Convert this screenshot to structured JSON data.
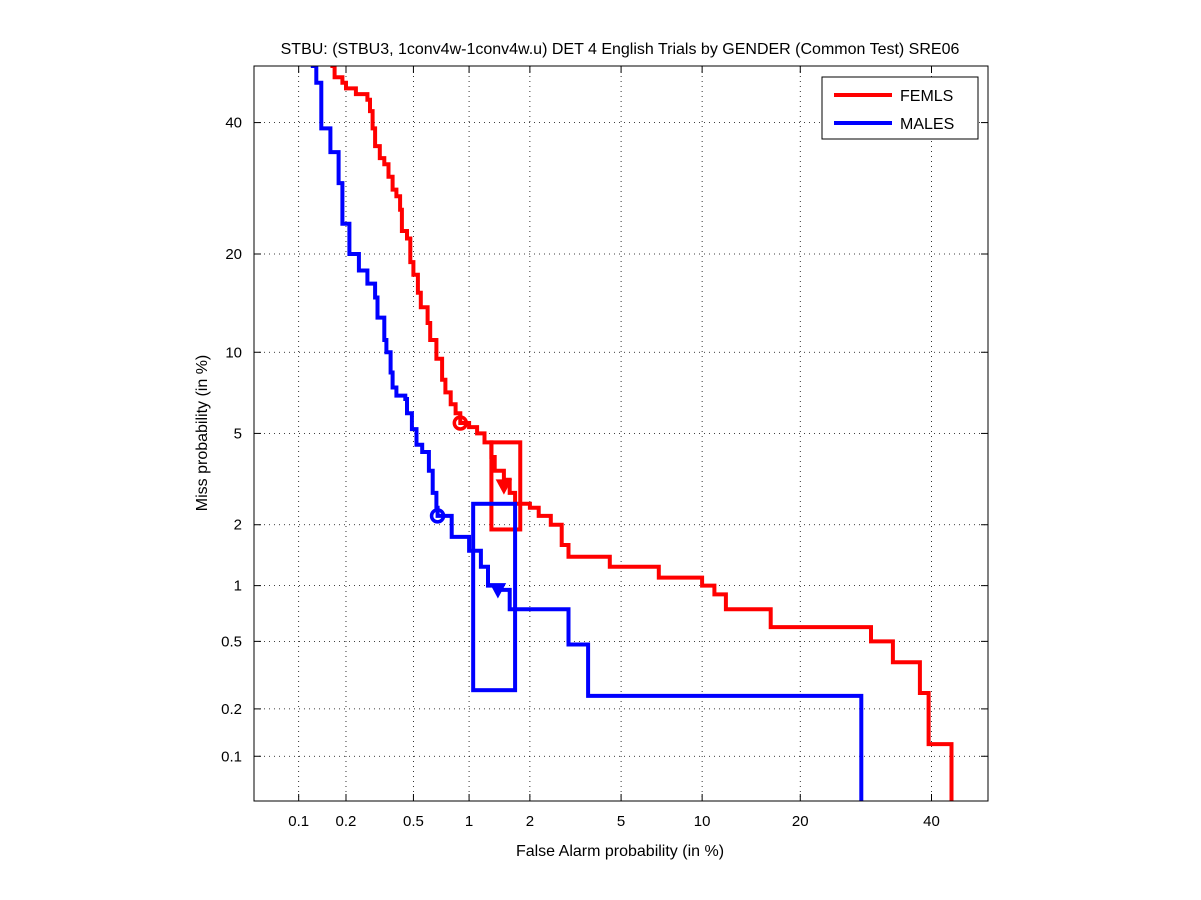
{
  "chart_data": {
    "type": "line",
    "scale": "probit",
    "title": "STBU: (STBU3, 1conv4w-1conv4w.u) DET 4 English Trials by GENDER (Common Test) SRE06",
    "xlabel": "False Alarm probability (in %)",
    "ylabel": "Miss probability (in %)",
    "xlim": [
      0.05,
      50
    ],
    "ylim": [
      0.05,
      50
    ],
    "xticks": [
      0.1,
      0.2,
      0.5,
      1,
      2,
      5,
      10,
      20,
      40
    ],
    "xtick_labels": [
      "0.1",
      "0.2",
      "0.5",
      "1",
      "2",
      "5",
      "10",
      "20",
      "40"
    ],
    "yticks": [
      0.1,
      0.2,
      0.5,
      1,
      2,
      5,
      10,
      20,
      40
    ],
    "ytick_labels": [
      "0.1",
      "0.2",
      "0.5",
      "1",
      "2",
      "5",
      "10",
      "20",
      "40"
    ],
    "grid": true,
    "legend_position": "top-right",
    "series": [
      {
        "name": "FEMLS",
        "color": "#ff0000",
        "points": [
          [
            0.16,
            50
          ],
          [
            0.17,
            48
          ],
          [
            0.19,
            47
          ],
          [
            0.2,
            46
          ],
          [
            0.23,
            45
          ],
          [
            0.27,
            44
          ],
          [
            0.28,
            42
          ],
          [
            0.29,
            39
          ],
          [
            0.3,
            36
          ],
          [
            0.32,
            34
          ],
          [
            0.34,
            33
          ],
          [
            0.36,
            31
          ],
          [
            0.38,
            29
          ],
          [
            0.4,
            28
          ],
          [
            0.42,
            26
          ],
          [
            0.43,
            23
          ],
          [
            0.46,
            22
          ],
          [
            0.48,
            19
          ],
          [
            0.5,
            17.5
          ],
          [
            0.53,
            15.5
          ],
          [
            0.55,
            14
          ],
          [
            0.6,
            12.5
          ],
          [
            0.62,
            11
          ],
          [
            0.67,
            9.5
          ],
          [
            0.72,
            8
          ],
          [
            0.75,
            7.2
          ],
          [
            0.8,
            6.5
          ],
          [
            0.85,
            6
          ],
          [
            0.9,
            5.5
          ],
          [
            1.0,
            5.3
          ],
          [
            1.1,
            5.0
          ],
          [
            1.2,
            4.6
          ],
          [
            1.3,
            4.0
          ],
          [
            1.35,
            3.5
          ],
          [
            1.5,
            3.2
          ],
          [
            1.6,
            2.8
          ],
          [
            1.7,
            2.5
          ],
          [
            2.0,
            2.4
          ],
          [
            2.2,
            2.2
          ],
          [
            2.5,
            2.0
          ],
          [
            2.8,
            1.6
          ],
          [
            3.0,
            1.4
          ],
          [
            4.0,
            1.4
          ],
          [
            4.5,
            1.25
          ],
          [
            6.0,
            1.25
          ],
          [
            7.0,
            1.1
          ],
          [
            9.0,
            1.1
          ],
          [
            10.0,
            1.0
          ],
          [
            11.0,
            0.9
          ],
          [
            12.0,
            0.75
          ],
          [
            16.0,
            0.75
          ],
          [
            16.5,
            0.6
          ],
          [
            29.0,
            0.6
          ],
          [
            30.0,
            0.5
          ],
          [
            33.0,
            0.5
          ],
          [
            33.5,
            0.38
          ],
          [
            37.5,
            0.38
          ],
          [
            38.0,
            0.25
          ],
          [
            39.0,
            0.25
          ],
          [
            39.5,
            0.12
          ],
          [
            43.0,
            0.12
          ],
          [
            43.5,
            0.05
          ]
        ],
        "act_dcf": [
          0.9,
          5.5
        ],
        "min_dcf": [
          1.5,
          3.0
        ],
        "conf_box": {
          "x": [
            1.3,
            1.8
          ],
          "y": [
            1.9,
            4.6
          ]
        }
      },
      {
        "name": "MALES",
        "color": "#0000ff",
        "points": [
          [
            0.12,
            50
          ],
          [
            0.13,
            47
          ],
          [
            0.14,
            39
          ],
          [
            0.16,
            35
          ],
          [
            0.18,
            30
          ],
          [
            0.19,
            24
          ],
          [
            0.21,
            20
          ],
          [
            0.24,
            18
          ],
          [
            0.27,
            16.5
          ],
          [
            0.3,
            15
          ],
          [
            0.31,
            13
          ],
          [
            0.34,
            11
          ],
          [
            0.35,
            10
          ],
          [
            0.37,
            8.5
          ],
          [
            0.38,
            7.5
          ],
          [
            0.4,
            7
          ],
          [
            0.45,
            6.8
          ],
          [
            0.46,
            6
          ],
          [
            0.49,
            5.2
          ],
          [
            0.52,
            4.5
          ],
          [
            0.56,
            4.2
          ],
          [
            0.6,
            4.2
          ],
          [
            0.61,
            3.5
          ],
          [
            0.64,
            2.8
          ],
          [
            0.67,
            2.4
          ],
          [
            0.68,
            2.2
          ],
          [
            0.8,
            2.2
          ],
          [
            0.81,
            1.75
          ],
          [
            0.95,
            1.75
          ],
          [
            1.0,
            1.5
          ],
          [
            1.1,
            1.5
          ],
          [
            1.15,
            1.25
          ],
          [
            1.25,
            1.0
          ],
          [
            1.3,
            1.0
          ],
          [
            1.4,
            0.95
          ],
          [
            1.55,
            0.95
          ],
          [
            1.6,
            0.75
          ],
          [
            2.9,
            0.75
          ],
          [
            3.0,
            0.48
          ],
          [
            3.6,
            0.48
          ],
          [
            3.65,
            0.24
          ],
          [
            28.0,
            0.24
          ],
          [
            28.5,
            0.05
          ]
        ],
        "act_dcf": [
          0.68,
          2.2
        ],
        "min_dcf": [
          1.4,
          0.95
        ],
        "conf_box": {
          "x": [
            1.05,
            1.7
          ],
          "y": [
            0.26,
            2.5
          ]
        }
      }
    ]
  }
}
